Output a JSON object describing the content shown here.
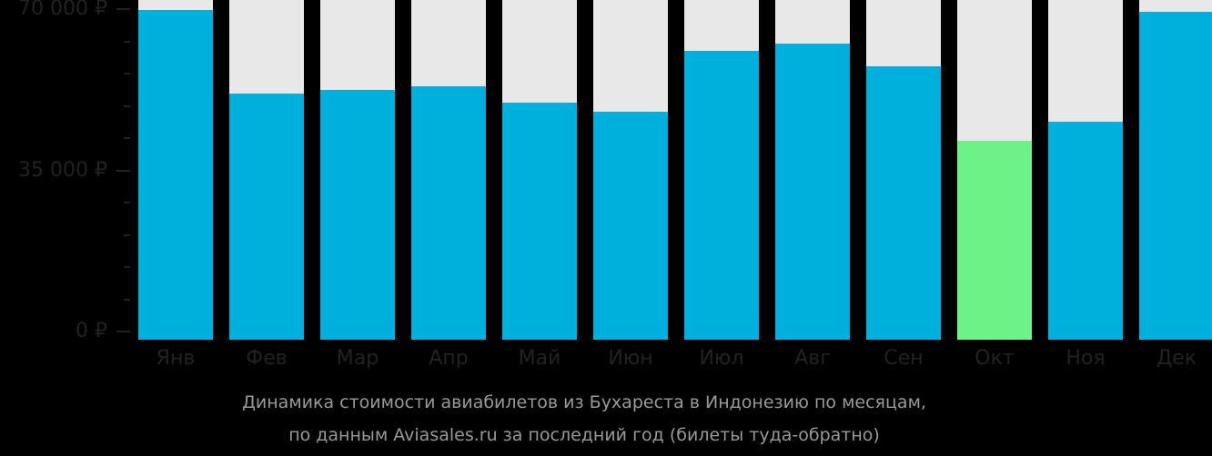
{
  "chart_data": {
    "type": "bar",
    "title": "Динамика стоимости авиабилетов из Бухареста в Индонезию по месяцам, по данным Aviasales.ru за последний год (билеты туда-обратно)",
    "xlabel": "",
    "ylabel": "",
    "categories": [
      "Янв",
      "Фев",
      "Мар",
      "Апр",
      "Май",
      "Июн",
      "Июл",
      "Авг",
      "Сен",
      "Окт",
      "Ноя",
      "Дек"
    ],
    "values": [
      69800,
      51700,
      52400,
      53200,
      49700,
      47700,
      60900,
      62500,
      57600,
      41400,
      45500,
      69400
    ],
    "highlight_index": 9,
    "ylim": [
      0,
      70000
    ],
    "yticks": [
      0,
      35000,
      70000
    ],
    "ytick_labels": [
      "0 ₽",
      "35 000 ₽",
      "70 000 ₽"
    ],
    "grid": false,
    "legend": null
  },
  "colors": {
    "bar": "#00b0dc",
    "bar_highlight": "#6cf286",
    "bar_background": "#e8e8e8",
    "axis_text": "#222222",
    "caption_text": "#999999"
  },
  "caption": {
    "line1": "Динамика стоимости авиабилетов из Бухареста в Индонезию по месяцам,",
    "line2": "по данным Aviasales.ru за последний год (билеты туда-обратно)"
  }
}
